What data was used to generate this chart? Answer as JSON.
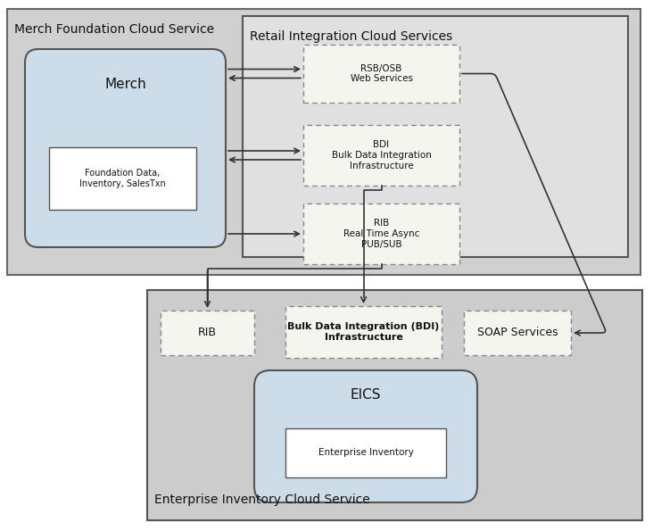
{
  "fig_width": 7.32,
  "fig_height": 5.95,
  "bg_color": "#ffffff",
  "outer_bg": "#d0d0d0",
  "inner_bg_rics": "#e0e0e0",
  "merch_fill": "#ccdce8",
  "eics_fill": "#ccdce8",
  "box_dotted_fill": "#f5f5f0",
  "white_fill": "#ffffff",
  "line_color": "#333333",
  "title_merch_fc": "Merch Foundation Cloud Service",
  "title_rics": "Retail Integration Cloud Services",
  "title_eics_cloud": "Enterprise Inventory Cloud Service",
  "label_merch": "Merch",
  "label_fd": "Foundation Data,\nInventory, SalesTxn",
  "label_rsb": "RSB/OSB\nWeb Services",
  "label_bdi_rics": "BDI\nBulk Data Integration\nInfrastructure",
  "label_rib_rics": "RIB\nReal Time Async\nPUB/SUB",
  "label_rib": "RIB",
  "label_bdi": "Bulk Data Integration (BDI)\nInfrastructure",
  "label_soap": "SOAP Services",
  "label_eics": "EICS",
  "label_ei": "Enterprise Inventory"
}
